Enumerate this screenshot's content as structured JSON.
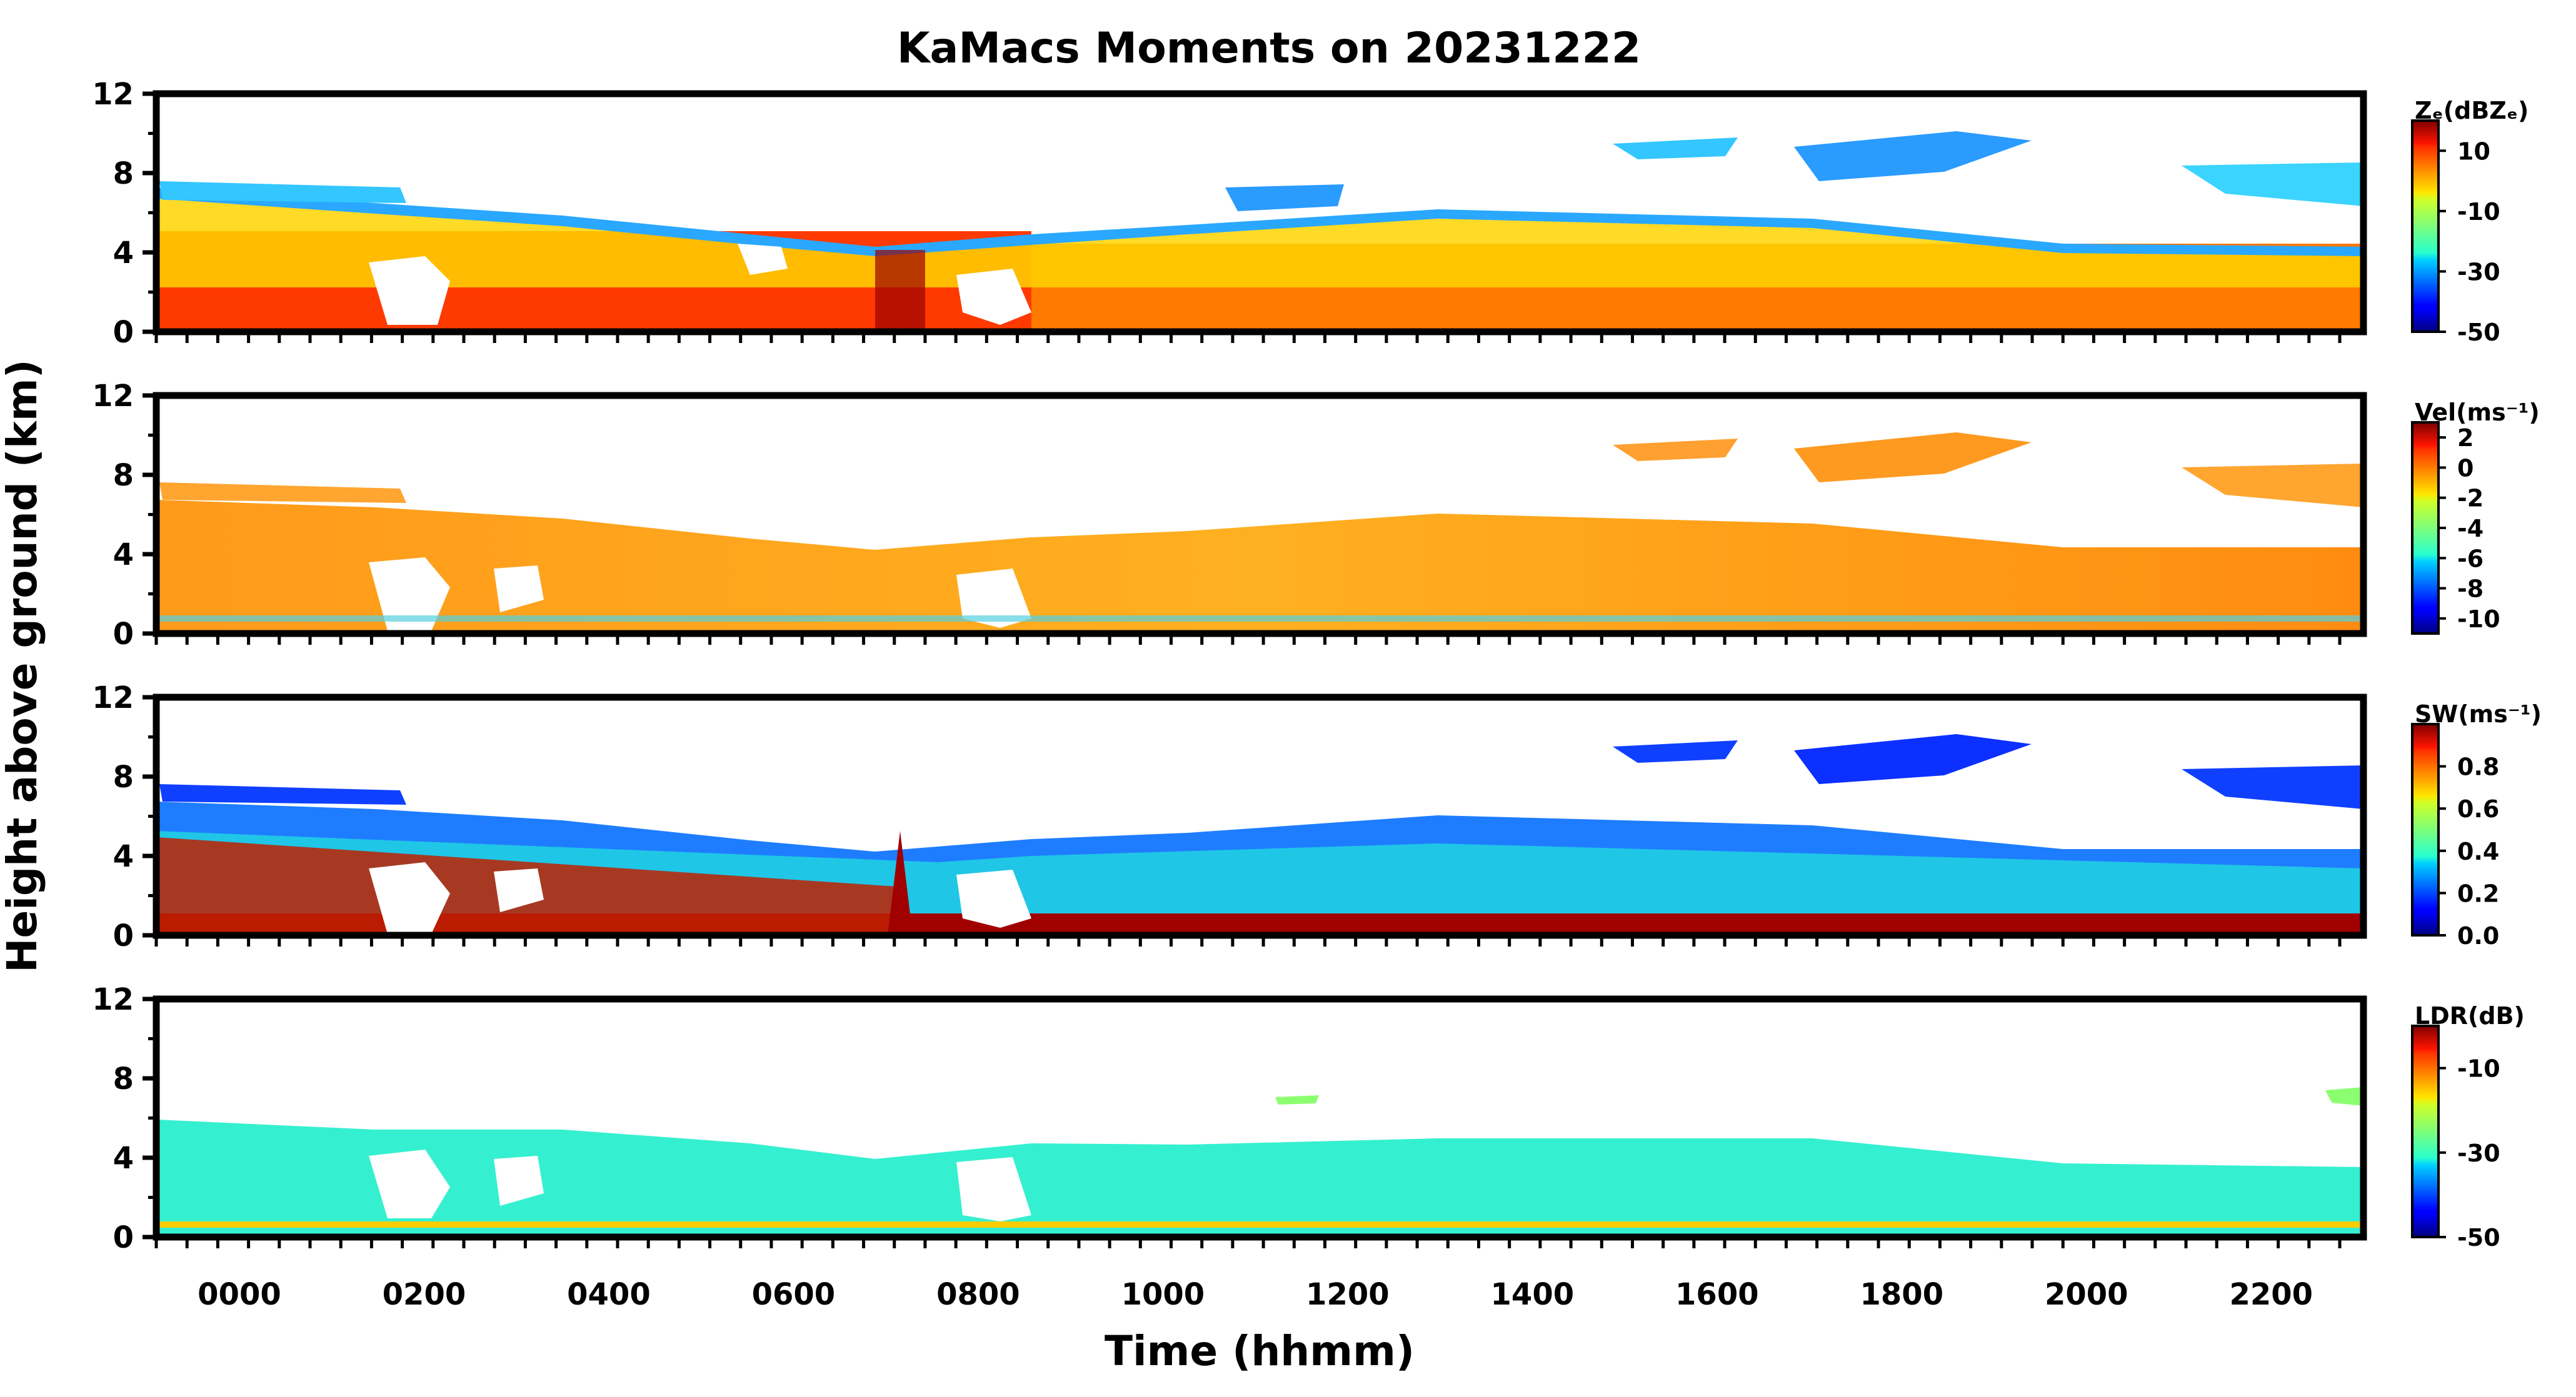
{
  "chart_data": {
    "type": "heatmap",
    "title": "KaMacs Moments on 20231222",
    "xlabel": "Time (hhmm)",
    "ylabel": "Height above ground (km)",
    "x_tick_labels": [
      "0000",
      "0200",
      "0400",
      "0600",
      "0800",
      "1000",
      "1200",
      "1400",
      "1600",
      "1800",
      "2000",
      "2200"
    ],
    "x_tick_hours": [
      0,
      2,
      4,
      6,
      8,
      10,
      12,
      14,
      16,
      18,
      20,
      22
    ],
    "x_range_hours": [
      -0.9,
      23
    ],
    "y_range_km": [
      0,
      12
    ],
    "y_ticks": [
      "0",
      "4",
      "8",
      "12"
    ],
    "panels": [
      {
        "name": "reflectivity",
        "colorbar_label": "Zₑ(dBZₑ)",
        "colorbar_range": [
          -50,
          20
        ],
        "colorbar_ticks": [
          "10",
          "-10",
          "-30",
          "-50"
        ],
        "colorbar_tick_values": [
          10,
          -10,
          -30,
          -50
        ]
      },
      {
        "name": "velocity",
        "colorbar_label": "Vel(ms⁻¹)",
        "colorbar_range": [
          -11,
          3
        ],
        "colorbar_ticks": [
          "2",
          "0",
          "-2",
          "-4",
          "-6",
          "-8",
          "-10"
        ],
        "colorbar_tick_values": [
          2,
          0,
          -2,
          -4,
          -6,
          -8,
          -10
        ]
      },
      {
        "name": "spectrum-width",
        "colorbar_label": "SW(ms⁻¹)",
        "colorbar_range": [
          0,
          1
        ],
        "colorbar_ticks": [
          "0.8",
          "0.6",
          "0.4",
          "0.2",
          "0.0"
        ],
        "colorbar_tick_values": [
          0.8,
          0.6,
          0.4,
          0.2,
          0.0
        ]
      },
      {
        "name": "ldr",
        "colorbar_label": "LDR(dB)",
        "colorbar_range": [
          -50,
          0
        ],
        "colorbar_ticks": [
          "-10",
          "-30",
          "-50"
        ],
        "colorbar_tick_values": [
          -10,
          -30,
          -50
        ]
      }
    ]
  }
}
